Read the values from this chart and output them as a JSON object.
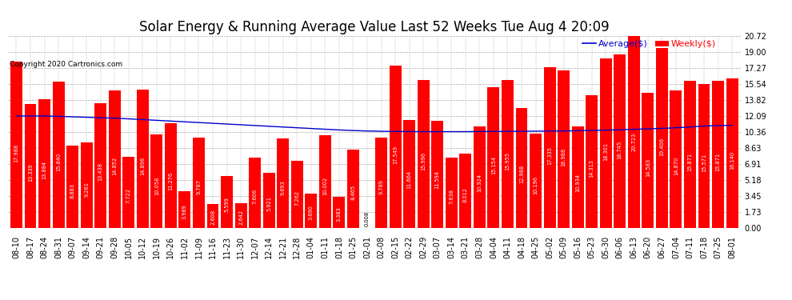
{
  "title": "Solar Energy & Running Average Value Last 52 Weeks Tue Aug 4 20:09",
  "copyright": "Copyright 2020 Cartronics.com",
  "ylim": [
    0,
    20.72
  ],
  "yticks": [
    0.0,
    1.73,
    3.45,
    5.18,
    6.91,
    8.63,
    10.36,
    12.09,
    13.82,
    15.54,
    17.27,
    19.0,
    20.72
  ],
  "bar_color": "#ff0000",
  "avg_line_color": "#0000cd",
  "legend_avg_color": "#0000cd",
  "legend_weekly_color": "#ff0000",
  "background_color": "#ffffff",
  "categories": [
    "08-10",
    "08-17",
    "08-24",
    "08-31",
    "09-07",
    "09-14",
    "09-21",
    "09-28",
    "10-05",
    "10-12",
    "10-19",
    "10-26",
    "11-02",
    "11-09",
    "11-16",
    "11-23",
    "11-30",
    "12-07",
    "12-14",
    "12-21",
    "12-28",
    "01-04",
    "01-11",
    "01-18",
    "01-25",
    "02-01",
    "02-08",
    "02-15",
    "02-22",
    "02-29",
    "03-07",
    "03-14",
    "03-21",
    "03-28",
    "04-04",
    "04-11",
    "04-18",
    "04-25",
    "05-02",
    "05-09",
    "05-16",
    "05-23",
    "05-30",
    "06-06",
    "06-13",
    "06-20",
    "06-27",
    "07-04",
    "07-11",
    "07-18",
    "07-25",
    "08-01"
  ],
  "values": [
    17.988,
    13.339,
    13.884,
    15.84,
    8.883,
    9.261,
    13.438,
    14.852,
    7.722,
    14.896,
    10.058,
    11.276,
    3.989,
    9.787,
    2.608,
    5.599,
    2.642,
    7.606,
    5.921,
    9.693,
    7.262,
    3.69,
    10.002,
    3.383,
    8.465,
    0.008,
    9.789,
    17.549,
    11.664,
    15.996,
    11.594,
    7.638,
    8.012,
    10.924,
    15.154,
    15.955,
    12.988,
    10.196,
    17.335,
    16.988,
    10.934,
    14.313,
    18.301,
    18.745,
    20.723,
    14.583,
    19.406,
    14.87,
    15.871,
    15.571,
    15.871,
    16.14
  ],
  "avg_values": [
    12.09,
    12.09,
    12.09,
    12.05,
    12.0,
    11.95,
    11.9,
    11.85,
    11.78,
    11.7,
    11.62,
    11.54,
    11.46,
    11.38,
    11.3,
    11.22,
    11.14,
    11.06,
    10.98,
    10.9,
    10.82,
    10.74,
    10.66,
    10.58,
    10.52,
    10.47,
    10.44,
    10.42,
    10.41,
    10.4,
    10.4,
    10.4,
    10.4,
    10.41,
    10.42,
    10.43,
    10.44,
    10.45,
    10.46,
    10.47,
    10.5,
    10.53,
    10.56,
    10.6,
    10.65,
    10.7,
    10.75,
    10.82,
    10.9,
    11.0,
    11.05,
    11.09
  ],
  "title_fontsize": 12,
  "tick_fontsize": 7,
  "bar_label_fontsize": 4.8,
  "copyright_fontsize": 6.5,
  "legend_fontsize": 8
}
